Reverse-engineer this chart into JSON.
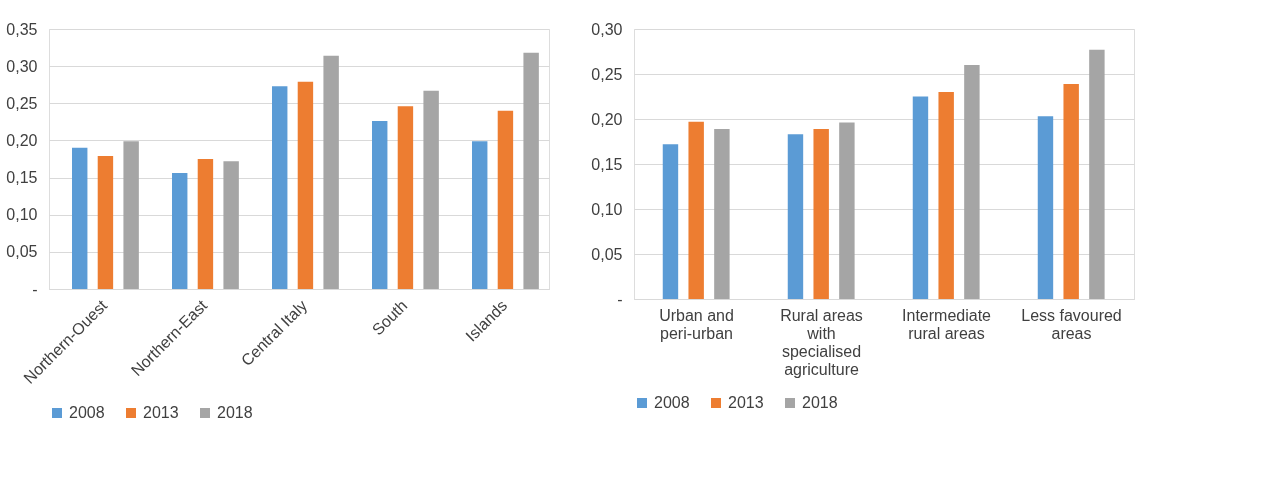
{
  "chart_data": [
    {
      "type": "bar",
      "categories": [
        "Northern-Ouest",
        "Northern-East",
        "Central Italy",
        "South",
        "Islands"
      ],
      "series": [
        {
          "name": "2008",
          "color": "#5b9bd5",
          "values": [
            0.19,
            0.156,
            0.273,
            0.226,
            0.199
          ]
        },
        {
          "name": "2013",
          "color": "#ed7d31",
          "values": [
            0.179,
            0.175,
            0.279,
            0.246,
            0.24
          ]
        },
        {
          "name": "2018",
          "color": "#a5a5a5",
          "values": [
            0.199,
            0.172,
            0.314,
            0.267,
            0.318
          ]
        }
      ],
      "ylim": [
        0,
        0.35
      ],
      "yticks": [
        {
          "value": 0,
          "label": "-"
        },
        {
          "value": 0.05,
          "label": "0,05"
        },
        {
          "value": 0.1,
          "label": "0,10"
        },
        {
          "value": 0.15,
          "label": "0,15"
        },
        {
          "value": 0.2,
          "label": "0,20"
        },
        {
          "value": 0.25,
          "label": "0,25"
        },
        {
          "value": 0.3,
          "label": "0,30"
        },
        {
          "value": 0.35,
          "label": "0,35"
        }
      ],
      "grid": "y",
      "legend": "bottom"
    },
    {
      "type": "bar",
      "categories": [
        "Urban and peri-urban",
        "Rural areas with specialised agriculture",
        "Intermediate rural areas",
        "Less favoured areas"
      ],
      "series": [
        {
          "name": "2008",
          "color": "#5b9bd5",
          "values": [
            0.172,
            0.183,
            0.225,
            0.203
          ]
        },
        {
          "name": "2013",
          "color": "#ed7d31",
          "values": [
            0.197,
            0.189,
            0.23,
            0.239
          ]
        },
        {
          "name": "2018",
          "color": "#a5a5a5",
          "values": [
            0.189,
            0.196,
            0.26,
            0.277
          ]
        }
      ],
      "ylim": [
        0,
        0.3
      ],
      "yticks": [
        {
          "value": 0,
          "label": "-"
        },
        {
          "value": 0.05,
          "label": "0,05"
        },
        {
          "value": 0.1,
          "label": "0,10"
        },
        {
          "value": 0.15,
          "label": "0,15"
        },
        {
          "value": 0.2,
          "label": "0,20"
        },
        {
          "value": 0.25,
          "label": "0,25"
        },
        {
          "value": 0.3,
          "label": "0,30"
        }
      ],
      "grid": "y",
      "legend": "bottom"
    }
  ]
}
